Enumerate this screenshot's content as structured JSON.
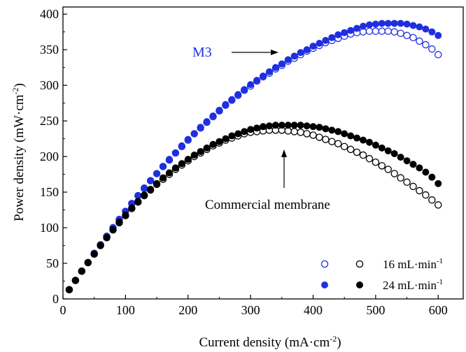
{
  "chart_data": {
    "type": "scatter",
    "xlabel_main": "Current density (mA·cm",
    "xlabel_sup": "-2",
    "xlabel_end": ")",
    "ylabel_main": "Power density (mW·cm",
    "ylabel_sup": "-2",
    "ylabel_end": ")",
    "xlim": [
      0,
      640
    ],
    "ylim": [
      0,
      410
    ],
    "xticks": [
      0,
      100,
      200,
      300,
      400,
      500,
      600
    ],
    "yticks": [
      0,
      50,
      100,
      150,
      200,
      250,
      300,
      350,
      400
    ],
    "annotations": {
      "m3": "M3",
      "commercial": "Commercial membrane"
    },
    "legend": {
      "placement": "bottom-right",
      "entries": [
        {
          "label": "16 mL·min",
          "sup": "-1"
        },
        {
          "label": "24 mL·min",
          "sup": "-1"
        }
      ]
    },
    "colors": {
      "m3": "#1f2fe0",
      "commercial": "#000000"
    },
    "x": [
      10,
      20,
      30,
      40,
      50,
      60,
      70,
      80,
      90,
      100,
      110,
      120,
      130,
      140,
      150,
      160,
      170,
      180,
      190,
      200,
      210,
      220,
      230,
      240,
      250,
      260,
      270,
      280,
      290,
      300,
      310,
      320,
      330,
      340,
      350,
      360,
      370,
      380,
      390,
      400,
      410,
      420,
      430,
      440,
      450,
      460,
      470,
      480,
      490,
      500,
      510,
      520,
      530,
      540,
      550,
      560,
      570,
      580,
      590,
      600
    ],
    "series": [
      {
        "group": "M3",
        "flow": "16",
        "marker": "open",
        "values": [
          13,
          26,
          39,
          51,
          64,
          76,
          88,
          100,
          111,
          123,
          134,
          145,
          155,
          166,
          176,
          186,
          195,
          205,
          214,
          223,
          232,
          240,
          248,
          256,
          264,
          272,
          279,
          286,
          293,
          299,
          306,
          312,
          317,
          323,
          328,
          334,
          338,
          343,
          348,
          352,
          356,
          360,
          363,
          366,
          369,
          372,
          374,
          375,
          376,
          376,
          376,
          376,
          375,
          373,
          370,
          367,
          362,
          357,
          351,
          343
        ]
      },
      {
        "group": "M3",
        "flow": "24",
        "marker": "filled",
        "values": [
          13,
          26,
          39,
          51,
          64,
          76,
          88,
          100,
          112,
          123,
          134,
          145,
          156,
          166,
          176,
          186,
          196,
          205,
          215,
          224,
          232,
          241,
          249,
          257,
          265,
          273,
          280,
          287,
          294,
          301,
          307,
          313,
          319,
          325,
          330,
          336,
          341,
          346,
          350,
          355,
          359,
          363,
          367,
          371,
          374,
          377,
          380,
          383,
          385,
          386,
          387,
          387,
          387,
          387,
          386,
          384,
          382,
          379,
          375,
          370
        ]
      },
      {
        "group": "Commercial",
        "flow": "16",
        "marker": "open",
        "values": [
          13,
          26,
          39,
          51,
          63,
          75,
          86,
          97,
          107,
          117,
          127,
          136,
          145,
          153,
          161,
          168,
          175,
          182,
          188,
          194,
          200,
          205,
          210,
          215,
          219,
          223,
          226,
          229,
          232,
          234,
          235,
          236,
          237,
          237,
          237,
          236,
          235,
          234,
          232,
          230,
          227,
          224,
          221,
          218,
          214,
          210,
          206,
          202,
          197,
          192,
          187,
          182,
          176,
          170,
          164,
          158,
          152,
          146,
          139,
          132
        ]
      },
      {
        "group": "Commercial",
        "flow": "24",
        "marker": "filled",
        "values": [
          13,
          26,
          39,
          51,
          63,
          75,
          86,
          97,
          108,
          118,
          128,
          137,
          146,
          154,
          162,
          170,
          177,
          184,
          190,
          196,
          202,
          207,
          212,
          217,
          221,
          225,
          229,
          232,
          235,
          238,
          240,
          242,
          243,
          244,
          244,
          244,
          244,
          244,
          243,
          242,
          241,
          239,
          237,
          235,
          232,
          229,
          226,
          223,
          220,
          216,
          212,
          208,
          204,
          199,
          194,
          189,
          184,
          178,
          171,
          162
        ]
      }
    ]
  }
}
